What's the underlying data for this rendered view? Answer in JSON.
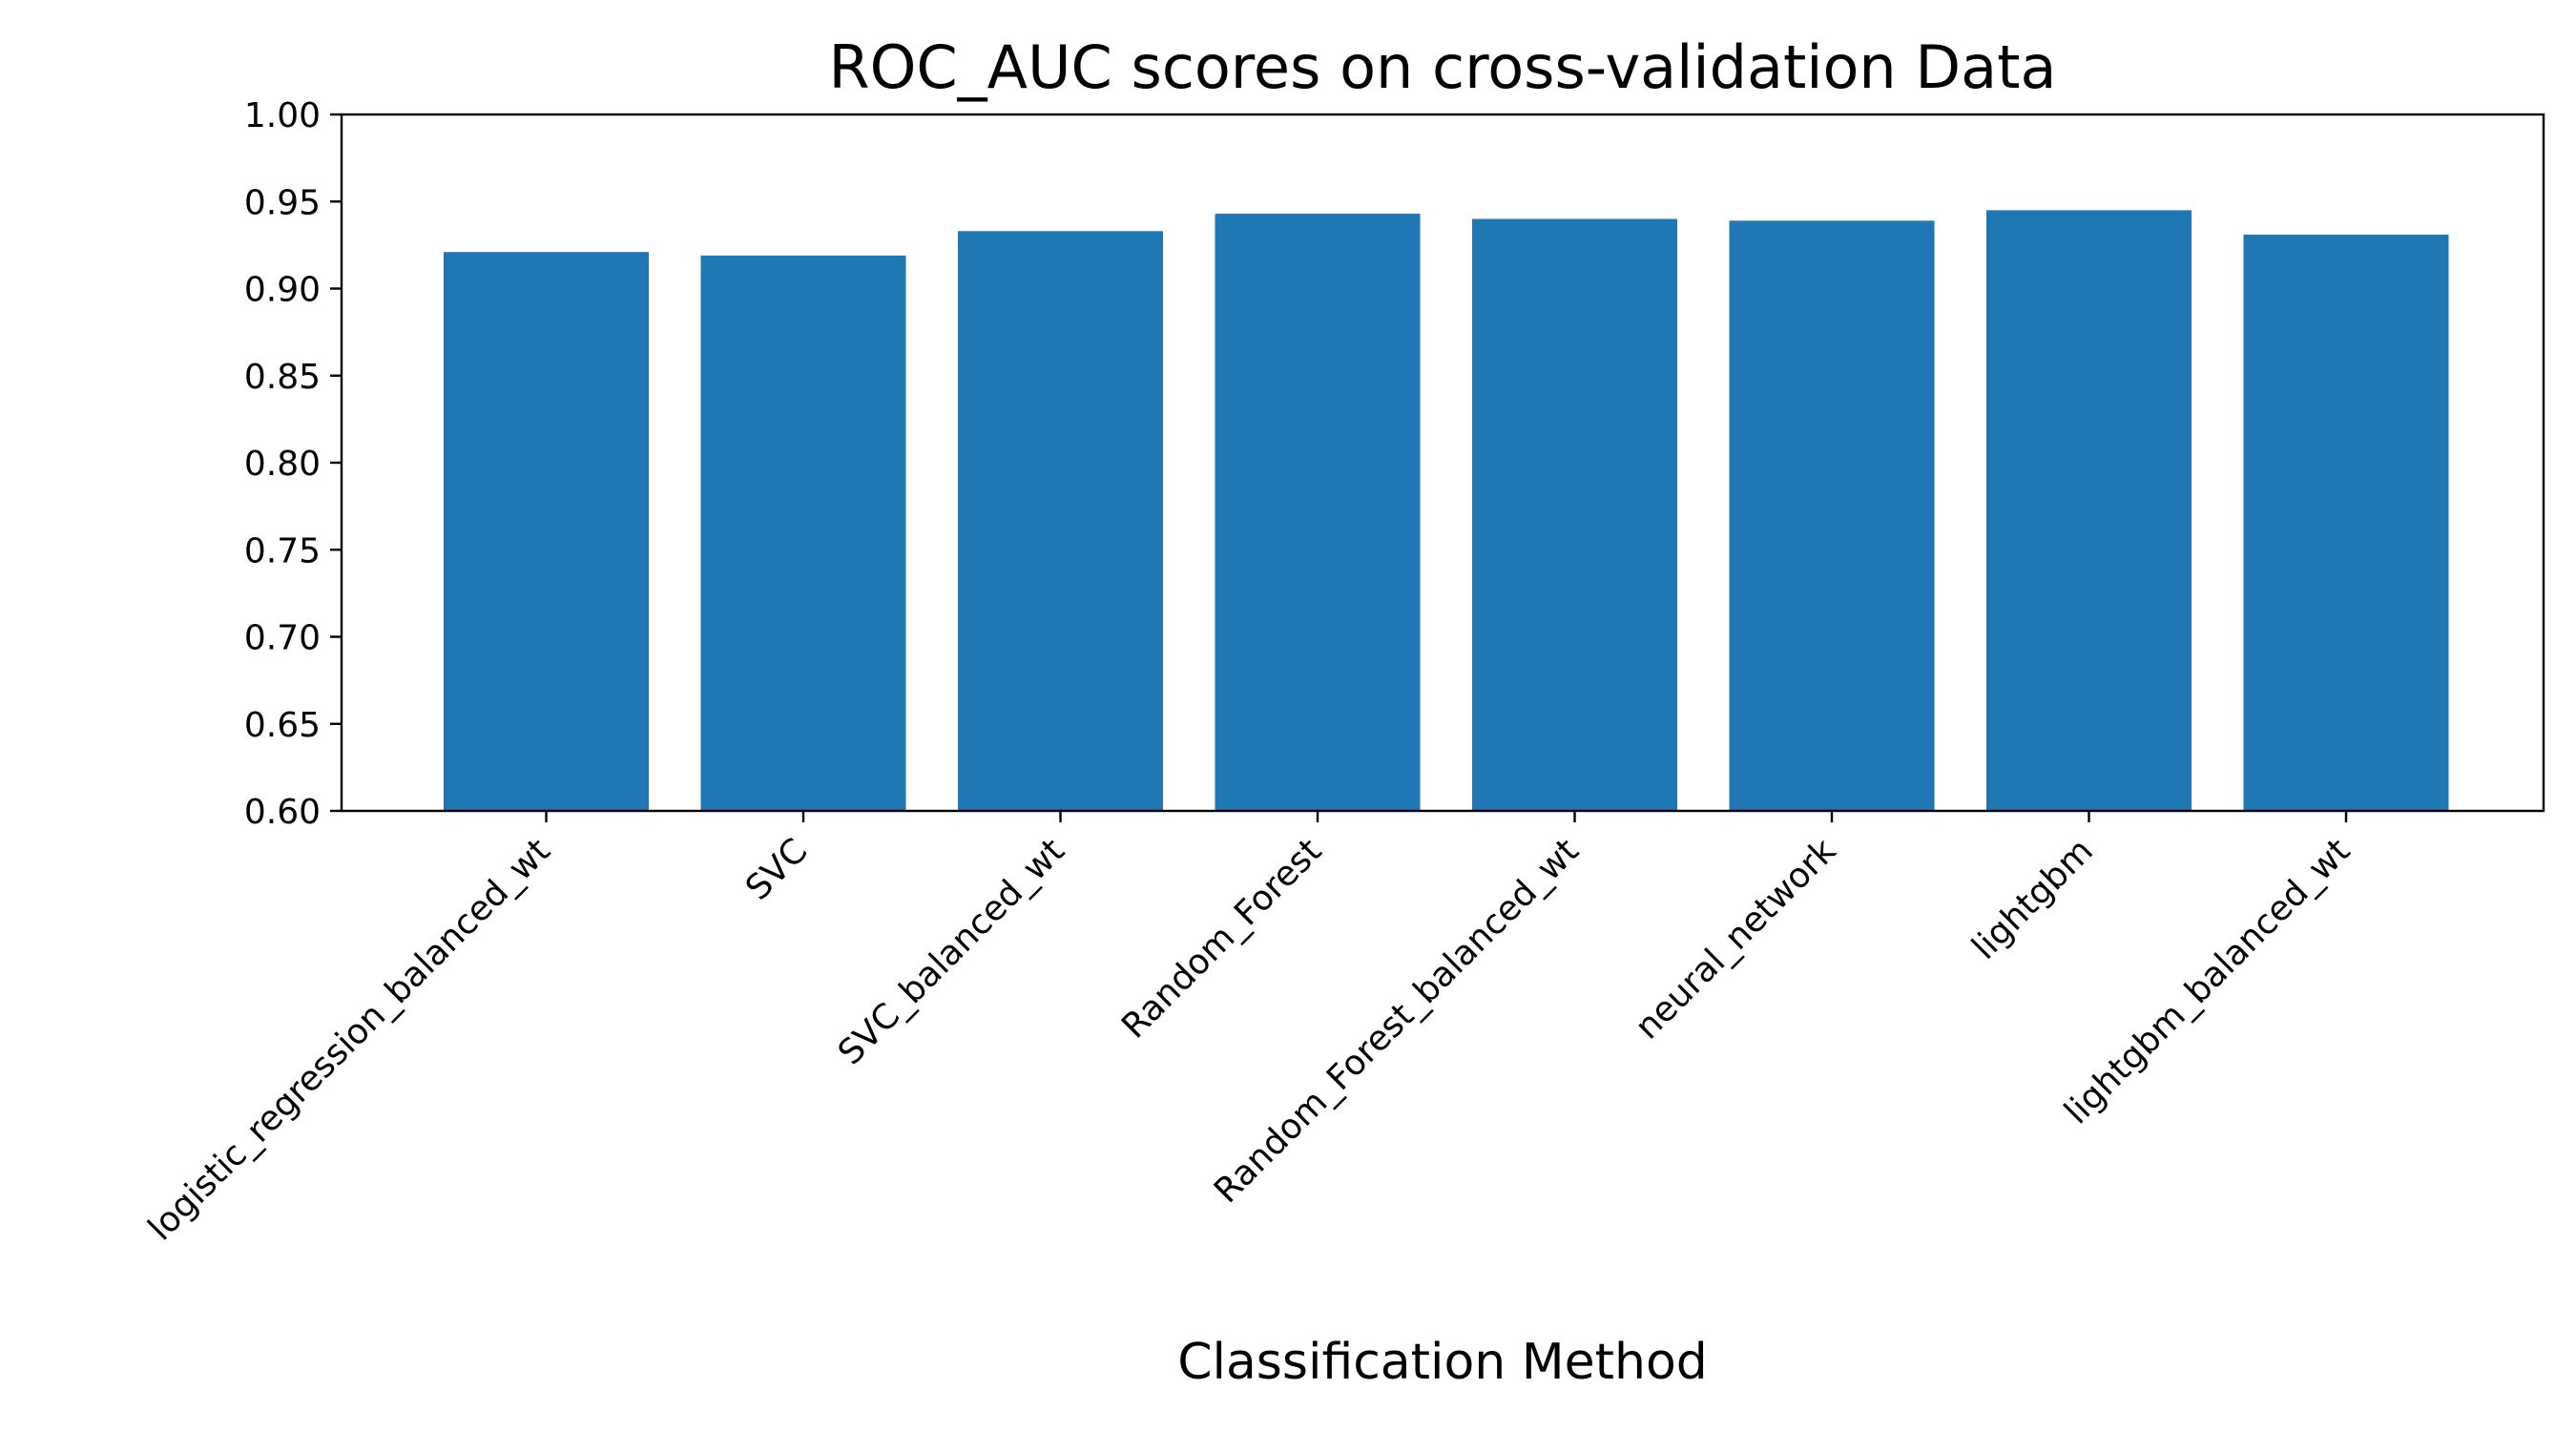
{
  "chart_data": {
    "type": "bar",
    "title": "ROC_AUC scores on cross-validation Data",
    "xlabel": "Classification Method",
    "ylabel": "",
    "categories": [
      "logistic_regression_balanced_wt",
      "SVC",
      "SVC_balanced_wt",
      "Random_Forest",
      "Random_Forest_balanced_wt",
      "neural_network",
      "lightgbm",
      "lightgbm_balanced_wt"
    ],
    "values": [
      0.921,
      0.919,
      0.933,
      0.943,
      0.94,
      0.939,
      0.945,
      0.931
    ],
    "ylim": [
      0.6,
      1.0
    ],
    "yticks": [
      "0.60",
      "0.65",
      "0.70",
      "0.75",
      "0.80",
      "0.85",
      "0.90",
      "0.95",
      "1.00"
    ],
    "bar_color": "#1f77b4",
    "grid": false,
    "legend": "none"
  }
}
